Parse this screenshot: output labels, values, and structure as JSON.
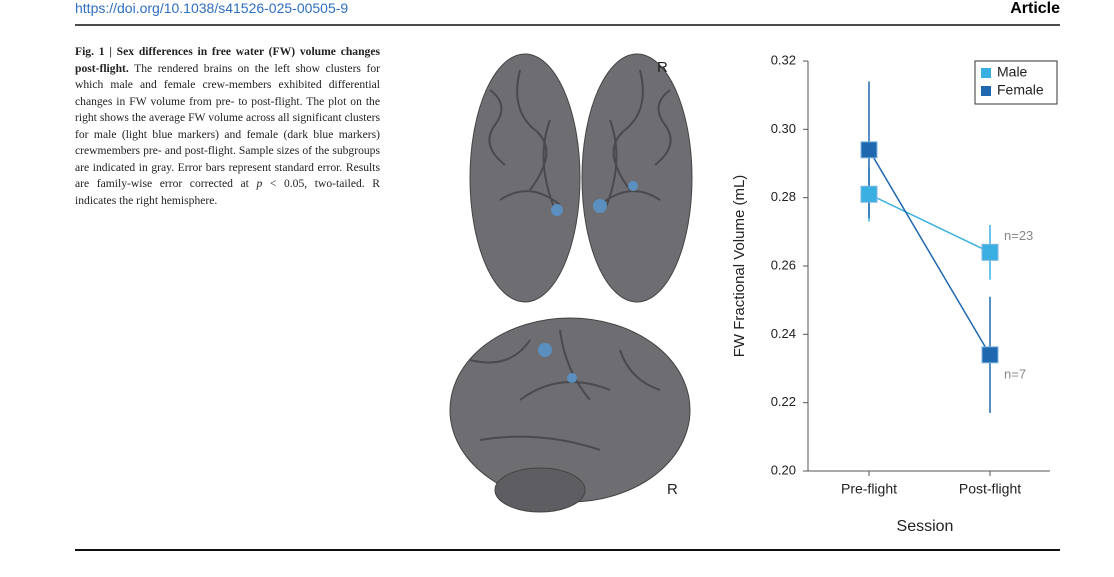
{
  "header": {
    "doi": "https://doi.org/10.1038/s41526-025-00505-9",
    "section": "Article"
  },
  "caption": {
    "bold": "Fig. 1 | Sex differences in free water (FW) volume changes post-flight.",
    "text": " The rendered brains on the left show clusters for which male and female crew-members exhibited differential changes in FW volume from pre- to post-flight. The plot on the right shows the average FW volume across all significant clusters for male (light blue markers) and female (dark blue markers) crewmembers pre- and post-flight. Sample sizes of the subgroups are indicated in gray. Error bars represent standard error. Results are family-wise error corrected at ",
    "italic": "p",
    "tail": " < 0.05, two-tailed. R indicates the right hemisphere."
  },
  "brains": {
    "top_label": "R",
    "side_label": "R"
  },
  "chart_data": {
    "type": "line",
    "x_label": "Session",
    "y_label": "FW Fractional Volume (mL)",
    "categories": [
      "Pre-flight",
      "Post-flight"
    ],
    "series": [
      {
        "name": "Male",
        "color": "#3ab0e2",
        "values": [
          0.281,
          0.264
        ],
        "errors": [
          0.008,
          0.008
        ],
        "n_label": "n=23"
      },
      {
        "name": "Female",
        "color": "#1f68b0",
        "values": [
          0.294,
          0.234
        ],
        "errors": [
          0.02,
          0.017
        ],
        "n_label": "n=7"
      }
    ],
    "ylim": [
      0.2,
      0.32
    ],
    "yticks": [
      {
        "value": 0.2,
        "label": "0.20"
      },
      0.22,
      0.24,
      0.26,
      0.28,
      {
        "value": 0.3,
        "label": "0.30"
      },
      0.32
    ],
    "legend": "upper right"
  }
}
